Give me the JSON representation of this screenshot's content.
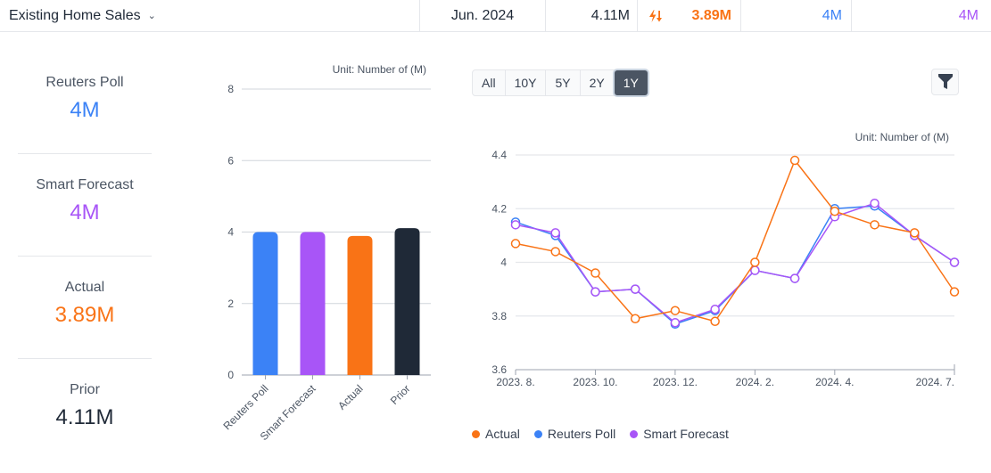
{
  "header": {
    "indicator": "Existing Home Sales",
    "date": "Jun. 2024",
    "prior": "4.11M",
    "actual": "3.89M",
    "actual_icon": "bolt-down-arrow-icon",
    "reuters_poll": "4M",
    "smart_forecast": "4M"
  },
  "stats": [
    {
      "label": "Reuters Poll",
      "value": "4M",
      "color": "#3b82f6"
    },
    {
      "label": "Smart Forecast",
      "value": "4M",
      "color": "#a855f7"
    },
    {
      "label": "Actual",
      "value": "3.89M",
      "color": "#f97316"
    },
    {
      "label": "Prior",
      "value": "4.11M",
      "color": "#1f2937"
    }
  ],
  "range_buttons": [
    "All",
    "10Y",
    "5Y",
    "2Y",
    "1Y"
  ],
  "range_selected": "1Y",
  "filter_icon": "filter-icon",
  "chart_data": [
    {
      "type": "bar",
      "unit_label": "Unit: Number of (M)",
      "categories": [
        "Reuters Poll",
        "Smart Forecast",
        "Actual",
        "Prior"
      ],
      "values": [
        4.0,
        4.0,
        3.89,
        4.11
      ],
      "colors": [
        "#3b82f6",
        "#a855f7",
        "#f97316",
        "#1f2937"
      ],
      "ylim": [
        0,
        8
      ],
      "yticks": [
        "0",
        "2",
        "4",
        "6",
        "8"
      ],
      "grid": true
    },
    {
      "type": "line",
      "unit_label": "Unit: Number of (M)",
      "x": [
        "2023-08",
        "2023-09",
        "2023-10",
        "2023-11",
        "2023-12",
        "2024-01",
        "2024-02",
        "2024-03",
        "2024-04",
        "2024-05",
        "2024-06",
        "2024-07"
      ],
      "xtick_labels": [
        {
          "index": 0,
          "label": "2023. 8."
        },
        {
          "index": 2,
          "label": "2023. 10."
        },
        {
          "index": 4,
          "label": "2023. 12."
        },
        {
          "index": 6,
          "label": "2024. 2."
        },
        {
          "index": 8,
          "label": "2024. 4."
        },
        {
          "index": 11,
          "label": "2024. 7."
        }
      ],
      "ylim": [
        3.6,
        4.4
      ],
      "yticks": [
        "3.6",
        "3.8",
        "4",
        "4.2",
        "4.4"
      ],
      "grid": true,
      "legend_position": "bottom-left",
      "series": [
        {
          "name": "Reuters Poll",
          "color": "#3b82f6",
          "values": [
            4.15,
            4.1,
            3.89,
            3.9,
            3.77,
            3.82,
            3.97,
            3.94,
            4.2,
            4.21,
            4.1,
            4.0
          ]
        },
        {
          "name": "Smart Forecast",
          "color": "#a855f7",
          "values": [
            4.14,
            4.11,
            3.89,
            3.9,
            3.775,
            3.825,
            3.97,
            3.94,
            4.17,
            4.22,
            4.1,
            4.0
          ]
        },
        {
          "name": "Actual",
          "color": "#f97316",
          "values": [
            4.07,
            4.04,
            3.96,
            3.79,
            3.82,
            3.78,
            4.0,
            4.38,
            4.19,
            4.14,
            4.11,
            3.89
          ]
        }
      ],
      "legend": [
        "Actual",
        "Reuters Poll",
        "Smart Forecast"
      ]
    }
  ]
}
